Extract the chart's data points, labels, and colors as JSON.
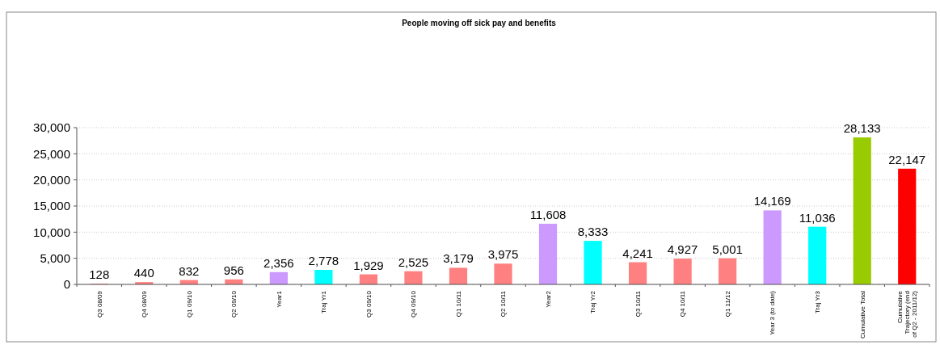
{
  "chart_data": {
    "type": "bar",
    "title": "People moving off sick pay and benefits",
    "categories": [
      "Q3 08/09",
      "Q4 08/09",
      "Q1 09/10",
      "Q2 09/10",
      "Year1",
      "Traj Yr1",
      "Q3 09/10",
      "Q4 09/10",
      "Q1 10/11",
      "Q2 10/11",
      "Year2",
      "Traj Yr2",
      "Q3 10/11",
      "Q4 10/11",
      "Q1 11/12",
      "Year 3 (to date)",
      "Traj Yr3",
      "Cumulative Total",
      "Cumulative Trajectory (end of Q2 - 2011/12)"
    ],
    "values": [
      128,
      440,
      832,
      956,
      2356,
      2778,
      1929,
      2525,
      3179,
      3975,
      11608,
      8333,
      4241,
      4927,
      5001,
      14169,
      11036,
      28133,
      22147
    ],
    "colors": [
      "#ff8080",
      "#ff8080",
      "#ff8080",
      "#ff8080",
      "#cc99ff",
      "#00ffff",
      "#ff8080",
      "#ff8080",
      "#ff8080",
      "#ff8080",
      "#cc99ff",
      "#00ffff",
      "#ff8080",
      "#ff8080",
      "#ff8080",
      "#cc99ff",
      "#00ffff",
      "#99cc00",
      "#ff0000"
    ],
    "ylim": [
      0,
      30000
    ],
    "yticks": [
      {
        "value": 0,
        "label": "0"
      },
      {
        "value": 5000,
        "label": "5,000"
      },
      {
        "value": 10000,
        "label": "10,000"
      },
      {
        "value": 15000,
        "label": "15,000"
      },
      {
        "value": 20000,
        "label": "20,000"
      },
      {
        "value": 25000,
        "label": "25,000"
      },
      {
        "value": 30000,
        "label": "30,000"
      }
    ],
    "value_labels": [
      "128",
      "440",
      "832",
      "956",
      "2,356",
      "2,778",
      "1,929",
      "2,525",
      "3,179",
      "3,975",
      "11,608",
      "8,333",
      "4,241",
      "4,927",
      "5,001",
      "14,169",
      "11,036",
      "28,133",
      "22,147"
    ],
    "grid": "y"
  }
}
